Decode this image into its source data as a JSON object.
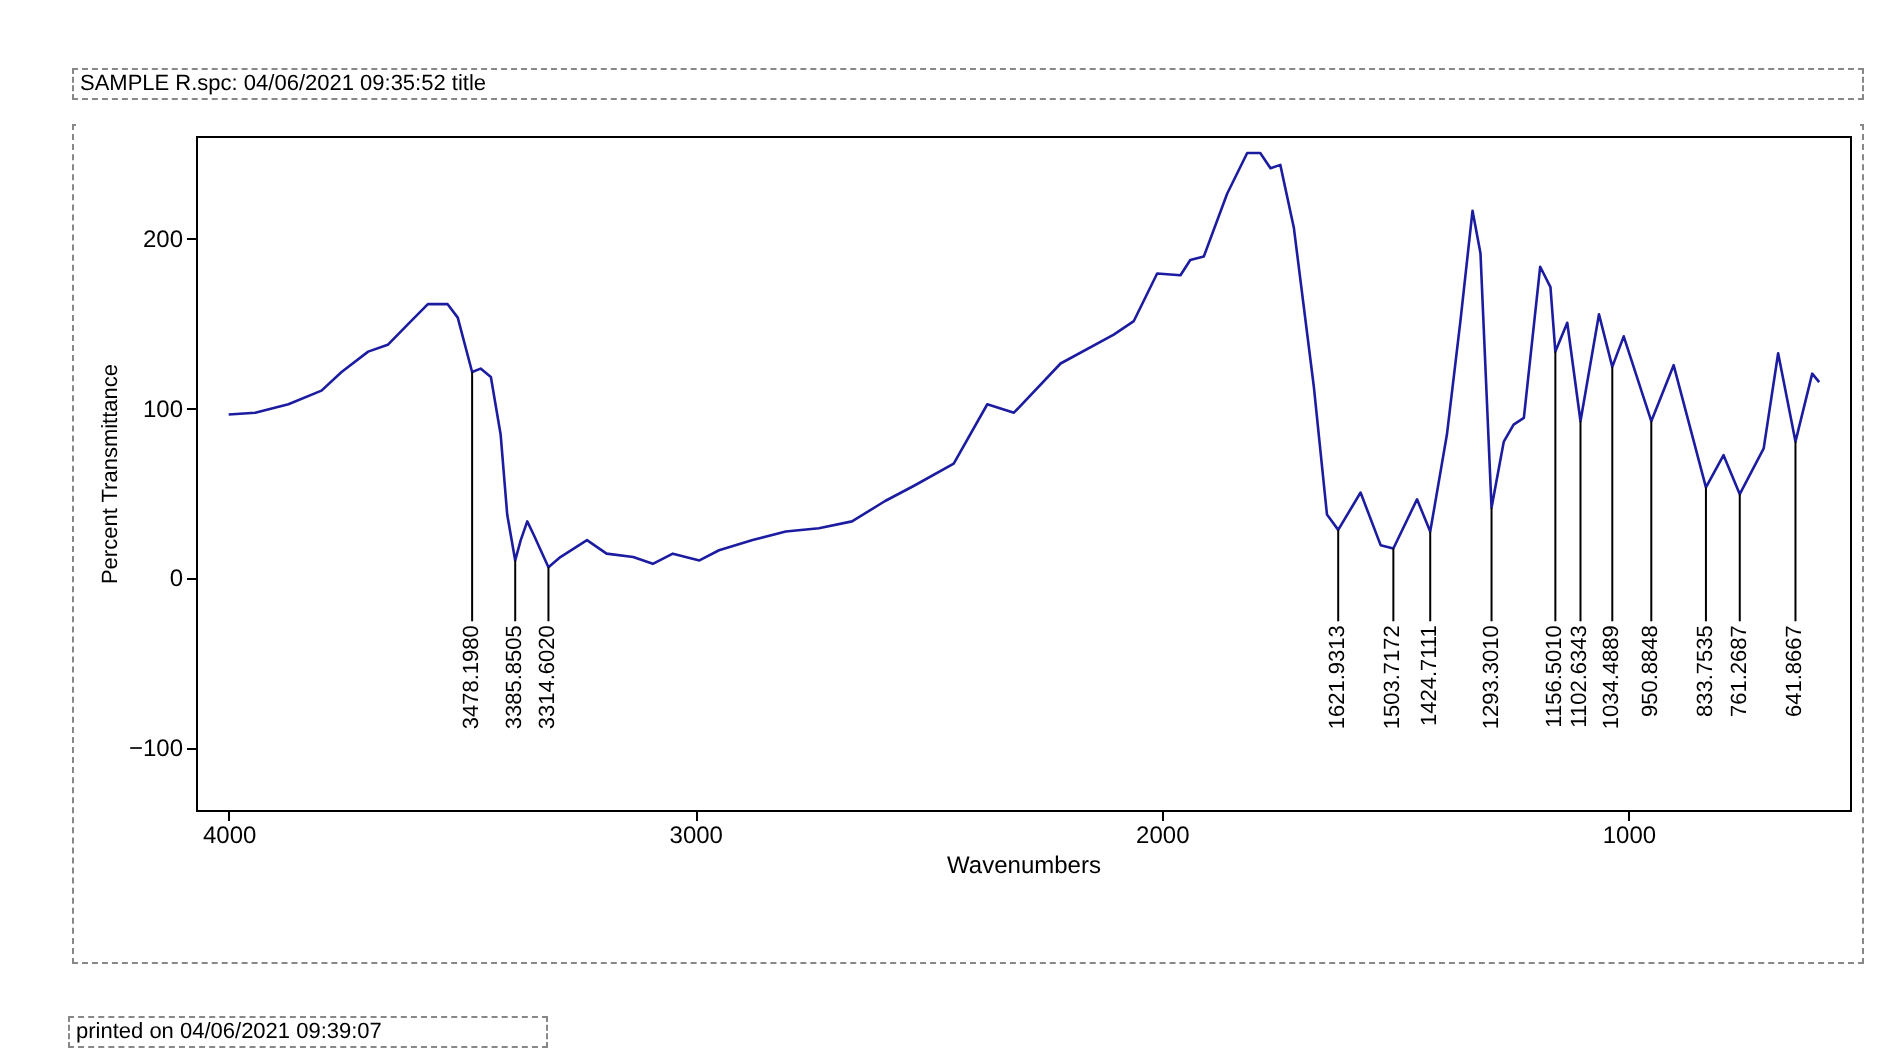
{
  "chart_data": {
    "type": "line",
    "title": "SAMPLE R.spc: 04/06/2021 09:35:52 title",
    "xlabel": "Wavenumbers",
    "ylabel": "Percent Transmittance",
    "xlim": [
      4070,
      525
    ],
    "ylim": [
      -137,
      260
    ],
    "xticks": [
      4000,
      3000,
      2000,
      1000
    ],
    "yticks": [
      -100,
      0,
      100,
      200
    ],
    "grid": false,
    "series": [
      {
        "color": "#1c1ca0",
        "x": [
          4000,
          3943,
          3872,
          3801,
          3758,
          3701,
          3659,
          3616,
          3573,
          3531,
          3509,
          3478.198,
          3460,
          3438,
          3417,
          3403,
          3385.8505,
          3374,
          3360,
          3346,
          3314.602,
          3289,
          3232,
          3190,
          3133,
          3091,
          3048,
          2991,
          2949,
          2877,
          2806,
          2735,
          2664,
          2593,
          2531,
          2446,
          2374,
          2317,
          2217,
          2103,
          2060,
          2010,
          1960,
          1939,
          1910,
          1860,
          1817,
          1789,
          1767,
          1746,
          1717,
          1674,
          1646,
          1621.9313,
          1574,
          1531,
          1503.7172,
          1453,
          1424.7111,
          1389,
          1360,
          1334,
          1317,
          1293.301,
          1267,
          1246,
          1224,
          1189,
          1167,
          1156.501,
          1131,
          1102.6343,
          1063,
          1034.4889,
          1010,
          950.8848,
          903,
          833.7535,
          796,
          761.2687,
          710,
          679,
          641.8667,
          606,
          591
        ],
        "values": [
          96,
          97,
          102,
          110,
          121,
          133,
          137,
          149,
          161,
          161,
          153,
          121,
          123,
          118,
          84,
          37,
          10,
          22,
          33,
          25,
          6,
          12,
          22,
          14,
          12,
          8,
          14,
          10,
          16,
          22,
          27,
          29,
          33,
          45,
          54,
          67,
          102,
          97,
          126,
          143,
          151,
          179,
          178,
          187,
          189,
          226,
          250,
          250,
          241,
          243,
          206,
          112,
          37,
          28,
          50,
          19,
          17,
          46,
          27,
          84,
          151,
          216,
          191,
          41,
          80,
          90,
          94,
          183,
          171,
          133,
          150,
          92,
          155,
          124,
          142,
          92,
          125,
          53,
          72,
          49,
          76,
          132,
          80,
          120,
          115
        ]
      }
    ],
    "annotations": [
      {
        "text": "3478.1980",
        "x": 3478.198,
        "y": 121
      },
      {
        "text": "3385.8505",
        "x": 3385.8505,
        "y": 10
      },
      {
        "text": "3314.6020",
        "x": 3314.602,
        "y": 6
      },
      {
        "text": "1621.9313",
        "x": 1621.9313,
        "y": 28
      },
      {
        "text": "1503.7172",
        "x": 1503.7172,
        "y": 17
      },
      {
        "text": "1424.7111",
        "x": 1424.7111,
        "y": 27
      },
      {
        "text": "1293.3010",
        "x": 1293.301,
        "y": 41
      },
      {
        "text": "1156.5010",
        "x": 1156.501,
        "y": 133
      },
      {
        "text": "1102.6343",
        "x": 1102.6343,
        "y": 92
      },
      {
        "text": "1034.4889",
        "x": 1034.4889,
        "y": 124
      },
      {
        "text": "950.8848",
        "x": 950.8848,
        "y": 92
      },
      {
        "text": "833.7535",
        "x": 833.7535,
        "y": 53
      },
      {
        "text": "761.2687",
        "x": 761.2687,
        "y": 49
      },
      {
        "text": "641.8667",
        "x": 641.8667,
        "y": 80
      },
      "printed on 04/06/2021 09:39:07"
    ]
  }
}
